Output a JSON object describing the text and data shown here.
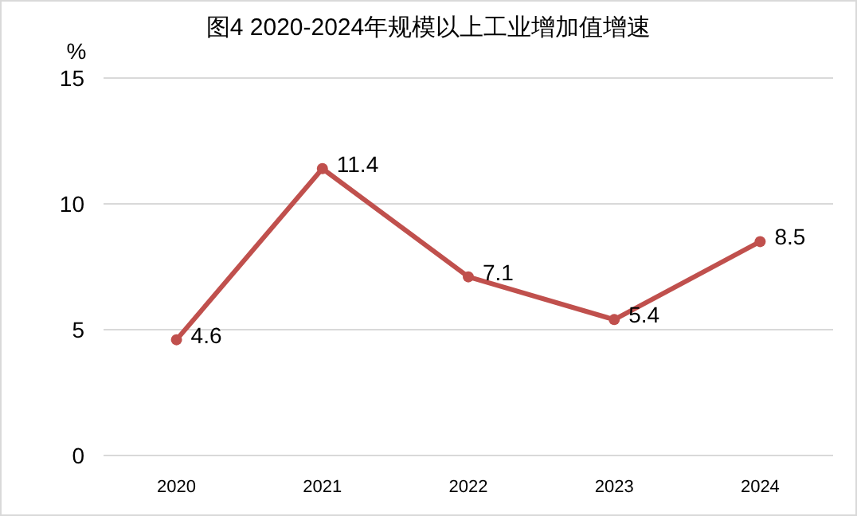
{
  "chart_data": {
    "type": "line",
    "title": "图4 2020-2024年规模以上工业增加值增速",
    "ylabel": "%",
    "categories": [
      "2020",
      "2021",
      "2022",
      "2023",
      "2024"
    ],
    "series": [
      {
        "color": "#c0504d",
        "values": [
          4.6,
          11.4,
          7.1,
          5.4,
          8.5
        ]
      }
    ],
    "ylim": [
      0,
      15
    ],
    "yticks": [
      0,
      5,
      10,
      15
    ],
    "grid": "y",
    "marker": "circle",
    "line_style": "solid",
    "data_labels": true
  }
}
